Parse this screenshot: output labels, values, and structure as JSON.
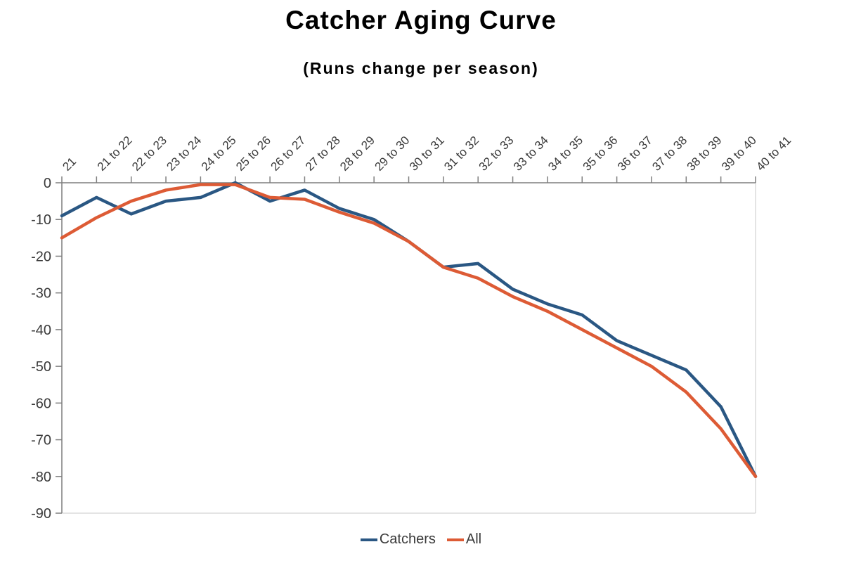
{
  "chart_data": {
    "type": "line",
    "title": "Catcher Aging Curve",
    "subtitle": "(Runs change per season)",
    "categories": [
      "21",
      "21 to 22",
      "22 to 23",
      "23 to 24",
      "24 to 25",
      "25 to 26",
      "26 to 27",
      "27 to 28",
      "28 to 29",
      "29 to 30",
      "30 to 31",
      "31 to 32",
      "32 to 33",
      "33 to 34",
      "34 to 35",
      "35 to 36",
      "36 to 37",
      "37 to 38",
      "38 to 39",
      "39 to 40",
      "40 to 41"
    ],
    "series": [
      {
        "name": "Catchers",
        "color": "#2a5783",
        "values": [
          -9,
          -4,
          -8.5,
          -5,
          -4,
          0,
          -5,
          -2,
          -7,
          -10,
          -16,
          -23,
          -22,
          -29,
          -33,
          -36,
          -43,
          -47,
          -51,
          -61,
          -80
        ]
      },
      {
        "name": "All",
        "color": "#dd5b35",
        "values": [
          -15,
          -9.5,
          -5,
          -2,
          -0.5,
          -0.5,
          -4,
          -4.5,
          -8,
          -11,
          -16,
          -23,
          -26,
          -31,
          -35,
          -40,
          -45,
          -50,
          -57,
          -67,
          -80
        ]
      }
    ],
    "yticks": [
      0,
      -10,
      -20,
      -30,
      -40,
      -50,
      -60,
      -70,
      -80,
      -90
    ],
    "ylim": [
      -90,
      0
    ],
    "xlabel": "",
    "ylabel": "",
    "grid": false,
    "legend_position": "bottom",
    "x_label_rotation": 45
  }
}
